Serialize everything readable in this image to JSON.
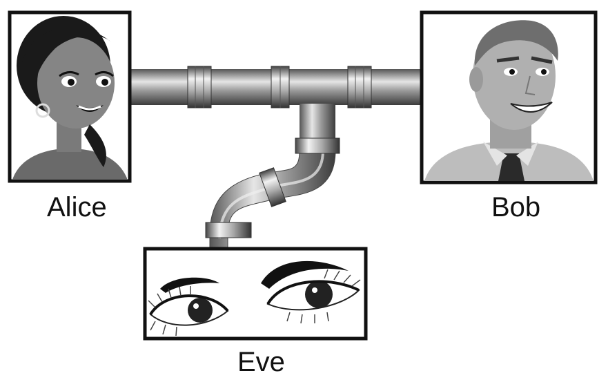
{
  "participants": {
    "alice": {
      "label": "Alice"
    },
    "bob": {
      "label": "Bob"
    },
    "eve": {
      "label": "Eve"
    }
  },
  "icons": {
    "alice_portrait": "woman-portrait-icon",
    "bob_portrait": "man-portrait-icon",
    "eve_portrait": "eyes-icon",
    "channel": "pipe-channel-icon",
    "tap": "eavesdrop-pipe-icon"
  },
  "colors": {
    "frame": "#111111",
    "pipe_dark": "#4a4a4a",
    "pipe_mid": "#8a8a8a",
    "pipe_light": "#d8d8d8",
    "skin_alice": "#7a7a7a",
    "skin_bob": "#a8a8a8",
    "background": "#ffffff"
  }
}
